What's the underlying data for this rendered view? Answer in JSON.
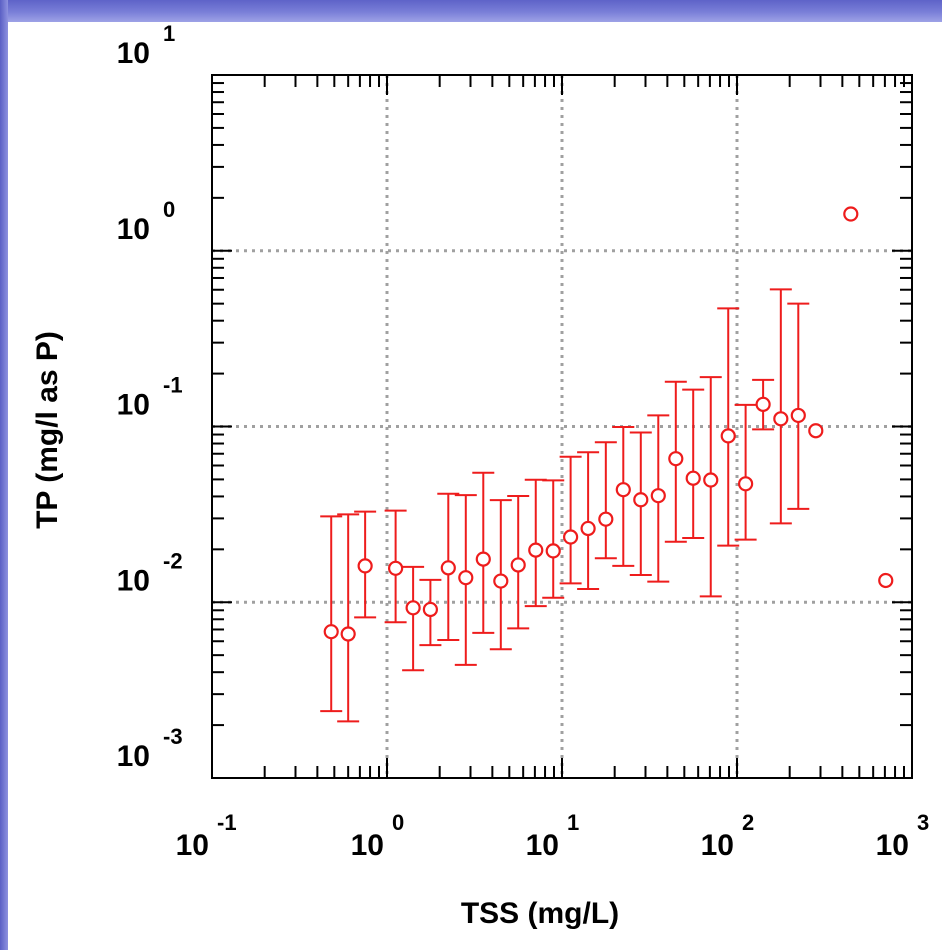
{
  "chart_data": {
    "type": "scatter",
    "title": "",
    "xlabel": "TSS (mg/L)",
    "ylabel": "TP (mg/l as P)",
    "x_scale": "log",
    "y_scale": "log",
    "xlim": [
      0.1,
      1000
    ],
    "ylim": [
      0.001,
      10
    ],
    "grid": true,
    "x_tick_labels": [
      {
        "base": "10",
        "exp": "-1",
        "value": 0.1
      },
      {
        "base": "10",
        "exp": "0",
        "value": 1
      },
      {
        "base": "10",
        "exp": "1",
        "value": 10
      },
      {
        "base": "10",
        "exp": "2",
        "value": 100
      },
      {
        "base": "10",
        "exp": "3",
        "value": 1000
      }
    ],
    "y_tick_labels": [
      {
        "base": "10",
        "exp": "-3",
        "value": 0.001
      },
      {
        "base": "10",
        "exp": "-2",
        "value": 0.01
      },
      {
        "base": "10",
        "exp": "-1",
        "value": 0.1
      },
      {
        "base": "10",
        "exp": "0",
        "value": 1
      },
      {
        "base": "10",
        "exp": "1",
        "value": 10
      }
    ],
    "colors": {
      "marker": "#ee1c1c",
      "grid": "#a0a0a0",
      "frame": "#000000"
    },
    "points": [
      {
        "x": 0.48,
        "y": 0.0068,
        "lo": 0.0024,
        "hi": 0.0308
      },
      {
        "x": 0.6,
        "y": 0.0066,
        "lo": 0.0021,
        "hi": 0.0316
      },
      {
        "x": 0.75,
        "y": 0.0161,
        "lo": 0.0082,
        "hi": 0.0328
      },
      {
        "x": 1.12,
        "y": 0.0156,
        "lo": 0.0077,
        "hi": 0.0332
      },
      {
        "x": 1.41,
        "y": 0.0093,
        "lo": 0.0041,
        "hi": 0.0159
      },
      {
        "x": 1.77,
        "y": 0.0091,
        "lo": 0.0057,
        "hi": 0.0134
      },
      {
        "x": 2.24,
        "y": 0.0157,
        "lo": 0.0061,
        "hi": 0.0414
      },
      {
        "x": 2.82,
        "y": 0.0138,
        "lo": 0.0044,
        "hi": 0.0407
      },
      {
        "x": 3.55,
        "y": 0.0176,
        "lo": 0.0067,
        "hi": 0.0546
      },
      {
        "x": 4.47,
        "y": 0.0132,
        "lo": 0.0054,
        "hi": 0.0381
      },
      {
        "x": 5.62,
        "y": 0.0163,
        "lo": 0.0071,
        "hi": 0.0402
      },
      {
        "x": 7.08,
        "y": 0.0198,
        "lo": 0.0095,
        "hi": 0.0498
      },
      {
        "x": 8.91,
        "y": 0.0196,
        "lo": 0.0106,
        "hi": 0.0494
      },
      {
        "x": 11.2,
        "y": 0.0235,
        "lo": 0.0128,
        "hi": 0.0673
      },
      {
        "x": 14.1,
        "y": 0.0263,
        "lo": 0.0119,
        "hi": 0.0714
      },
      {
        "x": 17.8,
        "y": 0.0297,
        "lo": 0.0178,
        "hi": 0.0813
      },
      {
        "x": 22.4,
        "y": 0.0437,
        "lo": 0.0161,
        "hi": 0.0994
      },
      {
        "x": 28.2,
        "y": 0.0383,
        "lo": 0.0143,
        "hi": 0.0925
      },
      {
        "x": 35.5,
        "y": 0.0404,
        "lo": 0.0131,
        "hi": 0.1157
      },
      {
        "x": 44.7,
        "y": 0.0656,
        "lo": 0.0221,
        "hi": 0.1796
      },
      {
        "x": 56.2,
        "y": 0.0508,
        "lo": 0.0232,
        "hi": 0.1621
      },
      {
        "x": 70.8,
        "y": 0.0496,
        "lo": 0.0108,
        "hi": 0.1911
      },
      {
        "x": 89.1,
        "y": 0.0884,
        "lo": 0.021,
        "hi": 0.47
      },
      {
        "x": 112,
        "y": 0.0472,
        "lo": 0.0227,
        "hi": 0.1328
      },
      {
        "x": 141,
        "y": 0.1337,
        "lo": 0.0963,
        "hi": 0.1842
      },
      {
        "x": 178,
        "y": 0.1106,
        "lo": 0.0281,
        "hi": 0.6027
      },
      {
        "x": 224,
        "y": 0.1156,
        "lo": 0.034,
        "hi": 0.5
      },
      {
        "x": 282,
        "y": 0.0946,
        "lo": null,
        "hi": null
      },
      {
        "x": 447,
        "y": 1.6185,
        "lo": null,
        "hi": null
      },
      {
        "x": 708,
        "y": 0.0133,
        "lo": null,
        "hi": null
      }
    ]
  }
}
